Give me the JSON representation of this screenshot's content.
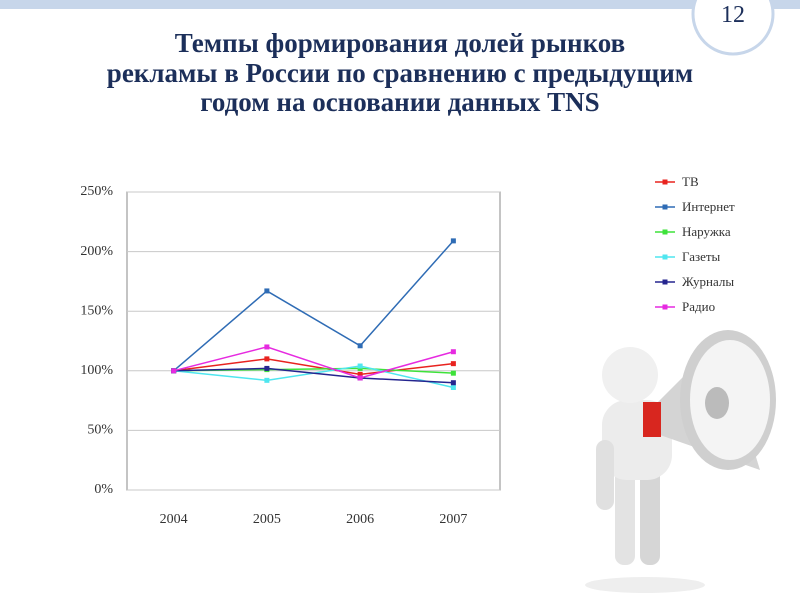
{
  "slide_number": "12",
  "chart_data": {
    "type": "line",
    "title": [
      "Темпы формирования долей рынков",
      "рекламы в России по сравнению с предыдущим",
      "годом на основании данных TNS"
    ],
    "categories": [
      "2004",
      "2005",
      "2006",
      "2007"
    ],
    "series": [
      {
        "name": "ТВ",
        "color": "#e8231f",
        "values": [
          100,
          110,
          97,
          106
        ]
      },
      {
        "name": "Интернет",
        "color": "#2f6cb5",
        "values": [
          100,
          167,
          121,
          209
        ]
      },
      {
        "name": "Наружка",
        "color": "#3ee23a",
        "values": [
          100,
          101,
          102,
          98
        ]
      },
      {
        "name": "Газеты",
        "color": "#4fe6ef",
        "values": [
          100,
          92,
          104,
          86
        ]
      },
      {
        "name": "Журналы",
        "color": "#25258f",
        "values": [
          100,
          102,
          94,
          90
        ]
      },
      {
        "name": "Радио",
        "color": "#e62ae0",
        "values": [
          100,
          120,
          94,
          116
        ]
      }
    ],
    "ylim": [
      0,
      250
    ],
    "yticks": [
      {
        "value": 0,
        "label": "0%"
      },
      {
        "value": 50,
        "label": "50%"
      },
      {
        "value": 100,
        "label": "100%"
      },
      {
        "value": 150,
        "label": "150%"
      },
      {
        "value": 200,
        "label": "200%"
      },
      {
        "value": 250,
        "label": "250%"
      }
    ],
    "grid": true,
    "legend": "right"
  }
}
